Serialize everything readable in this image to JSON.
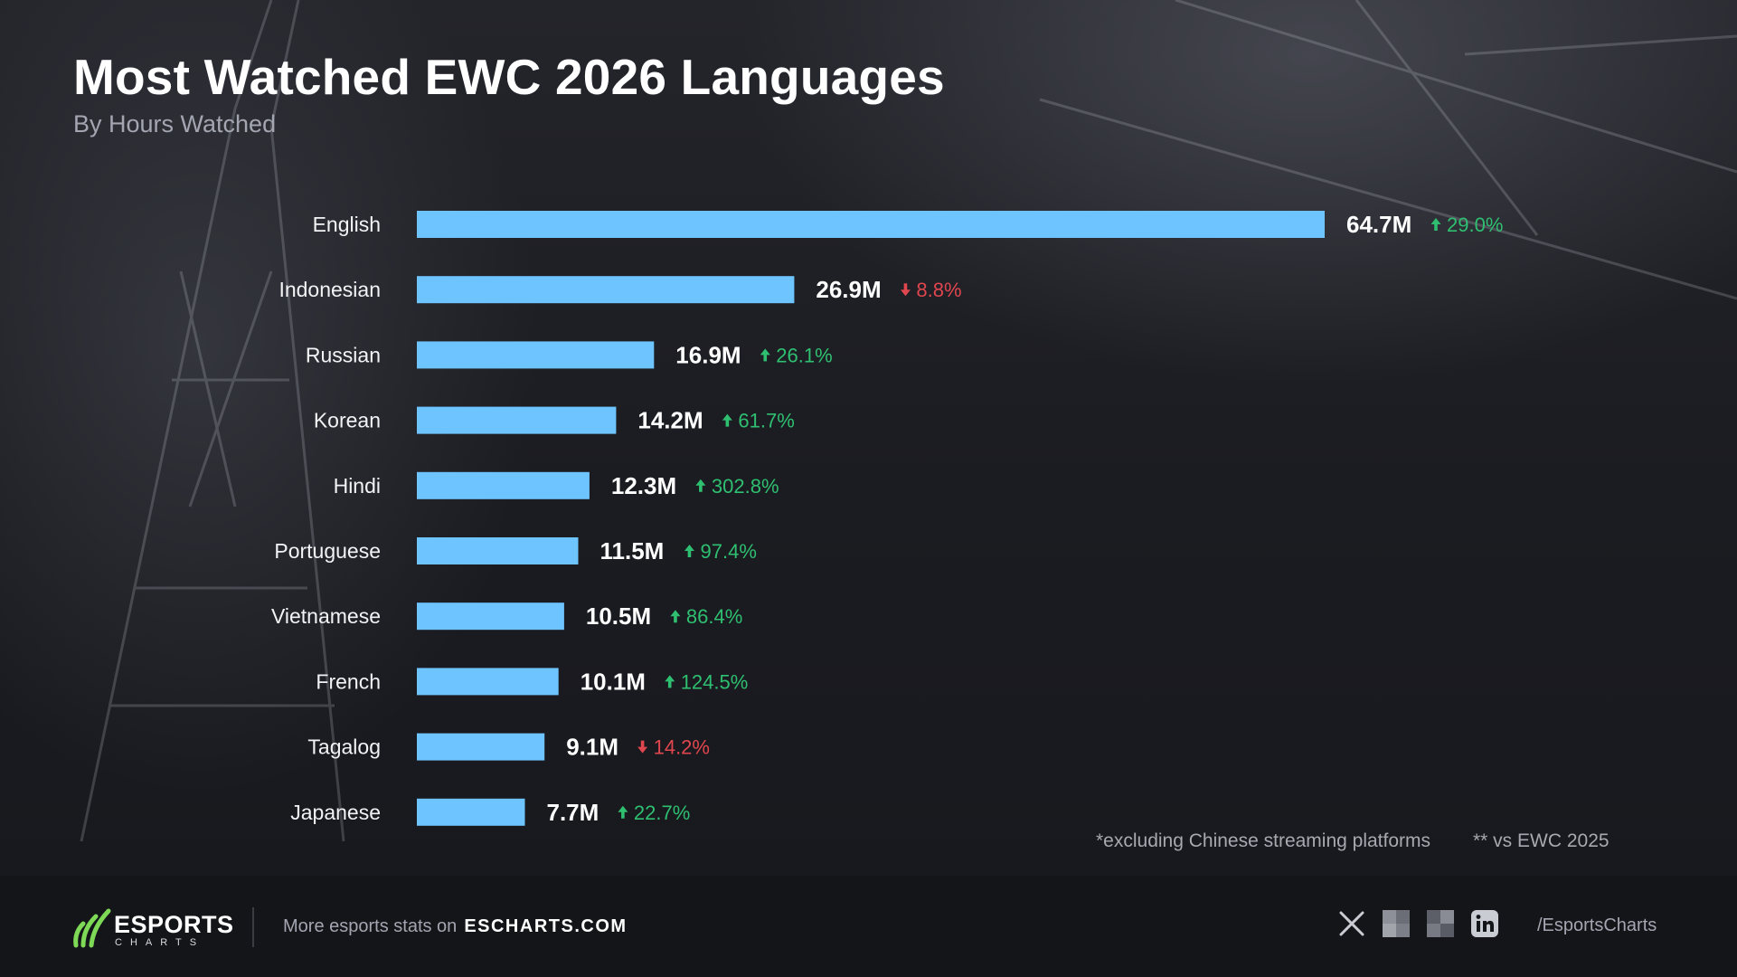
{
  "header": {
    "title": "Most Watched EWC 2026 Languages",
    "subtitle": "By Hours Watched"
  },
  "colors": {
    "bar": "#6ec4ff",
    "up": "#2fbf71",
    "down": "#e0464e",
    "background": "#1a1b20"
  },
  "chart_data": {
    "type": "bar",
    "orientation": "horizontal",
    "title": "Most Watched EWC 2026 Languages",
    "subtitle": "By Hours Watched",
    "unit": "M",
    "categories": [
      "English",
      "Indonesian",
      "Russian",
      "Korean",
      "Hindi",
      "Portuguese",
      "Vietnamese",
      "French",
      "Tagalog",
      "Japanese"
    ],
    "values": [
      64.7,
      26.9,
      16.9,
      14.2,
      12.3,
      11.5,
      10.5,
      10.1,
      9.1,
      7.7
    ],
    "value_labels": [
      "64.7M",
      "26.9M",
      "16.9M",
      "14.2M",
      "12.3M",
      "11.5M",
      "10.5M",
      "10.1M",
      "9.1M",
      "7.7M"
    ],
    "change_labels": [
      "29.0%",
      "8.8%",
      "26.1%",
      "61.7%",
      "302.8%",
      "97.4%",
      "86.4%",
      "124.5%",
      "14.2%",
      "22.7%"
    ],
    "change_direction": [
      "up",
      "down",
      "up",
      "up",
      "up",
      "up",
      "up",
      "up",
      "down",
      "up"
    ],
    "xlim": [
      0,
      64.7
    ],
    "grid": false,
    "legend": "none"
  },
  "footnotes": {
    "excluding": "*excluding Chinese streaming platforms",
    "comparison": "** vs EWC 2025"
  },
  "footer": {
    "logo_word": "ESPORTS",
    "logo_sub": "CHARTS",
    "more_text": "More esports stats on",
    "site": "ESCHARTS.COM",
    "social_icons": [
      "x-icon",
      "social-icon-2",
      "social-icon-3",
      "linkedin-icon"
    ],
    "handle": "/EsportsCharts"
  }
}
